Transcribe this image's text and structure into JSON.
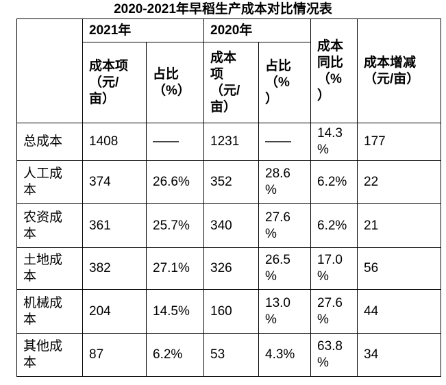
{
  "display": {
    "title": "2020-2021年早稻生产成本对比情况表",
    "year_2021": "2021年",
    "year_2020": "2020年",
    "cost_header_2021": "成本项\n（元/\n亩）",
    "pct_header_2021": "占比\n（%）",
    "cost_header_2020": "成本\n项\n（元/\n亩）",
    "pct_header_2020": "占比\n（%\n）",
    "yoy_header": "成本\n同比\n（%\n）",
    "change_header": "成本增减\n（元/亩）",
    "rows": [
      {
        "label": "总成本",
        "cost_2021": "1408",
        "pct_2021": "——",
        "cost_2020": "1231",
        "pct_2020": "——",
        "yoy": "14.3\n%",
        "change": "177"
      },
      {
        "label": "人工成\n本",
        "cost_2021": "374",
        "pct_2021": "26.6%",
        "cost_2020": "352",
        "pct_2020": "28.6\n%",
        "yoy": "6.2%",
        "change": "22"
      },
      {
        "label": "农资成\n本",
        "cost_2021": "361",
        "pct_2021": "25.7%",
        "cost_2020": "340",
        "pct_2020": "27.6\n%",
        "yoy": "6.2%",
        "change": "21"
      },
      {
        "label": "土地成\n本",
        "cost_2021": "382",
        "pct_2021": "27.1%",
        "cost_2020": "326",
        "pct_2020": "26.5\n%",
        "yoy": "17.0\n%",
        "change": "56"
      },
      {
        "label": "机械成\n本",
        "cost_2021": "204",
        "pct_2021": "14.5%",
        "cost_2020": "160",
        "pct_2020": "13.0\n%",
        "yoy": "27.6\n%",
        "change": "44"
      },
      {
        "label": "其他成\n本",
        "cost_2021": "87",
        "pct_2021": "6.2%",
        "cost_2020": "53",
        "pct_2020": "4.3%",
        "yoy": "63.8\n%",
        "change": "34"
      }
    ]
  },
  "chart_data": {
    "type": "table",
    "title": "2020-2021年早稻生产成本对比情况表",
    "column_groups": [
      "",
      "2021年",
      "2021年",
      "2020年",
      "2020年",
      "",
      ""
    ],
    "columns": [
      "",
      "成本项（元/亩）",
      "占比（%）",
      "成本项（元/亩）",
      "占比（%）",
      "成本同比（%）",
      "成本增减（元/亩）"
    ],
    "rows": [
      [
        "总成本",
        "1408",
        "——",
        "1231",
        "——",
        "14.3%",
        "177"
      ],
      [
        "人工成本",
        "374",
        "26.6%",
        "352",
        "28.6%",
        "6.2%",
        "22"
      ],
      [
        "农资成本",
        "361",
        "25.7%",
        "340",
        "27.6%",
        "6.2%",
        "21"
      ],
      [
        "土地成本",
        "382",
        "27.1%",
        "326",
        "26.5%",
        "17.0%",
        "56"
      ],
      [
        "机械成本",
        "204",
        "14.5%",
        "160",
        "13.0%",
        "27.6%",
        "44"
      ],
      [
        "其他成本",
        "87",
        "6.2%",
        "53",
        "4.3%",
        "63.8%",
        "34"
      ]
    ],
    "layout": {
      "borders": "all, 1px solid black",
      "header_bold": true,
      "text_align": "left",
      "background": "#ffffff",
      "text_color": "#000000"
    }
  }
}
